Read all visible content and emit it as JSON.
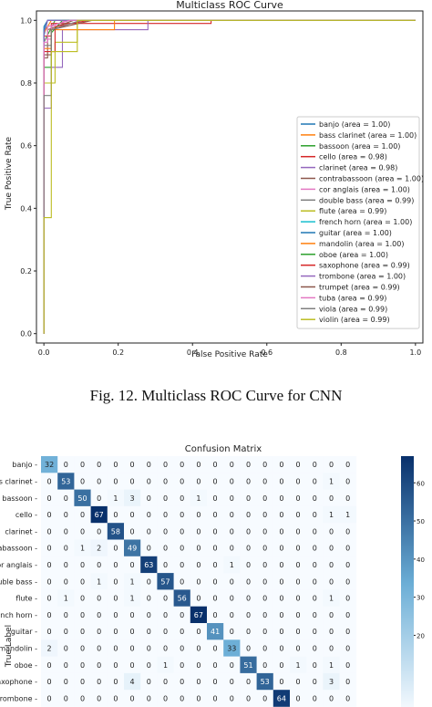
{
  "caption": "Fig. 12.  Multiclass ROC Curve for CNN",
  "chart_data": [
    {
      "type": "line",
      "title": "Multiclass ROC Curve",
      "xlabel": "False Positive Rate",
      "ylabel": "True Positive Rate",
      "xlim": [
        -0.02,
        1.02
      ],
      "ylim": [
        -0.03,
        1.03
      ],
      "xticks": [
        0.0,
        0.2,
        0.4,
        0.6,
        0.8,
        1.0
      ],
      "yticks": [
        0.0,
        0.2,
        0.4,
        0.6,
        0.8,
        1.0
      ],
      "grid": false,
      "legend_position": "lower-right",
      "series": [
        {
          "name": "banjo (area = 1.00)",
          "color": "#1f77b4",
          "x": [
            0,
            0,
            0.01,
            1
          ],
          "y": [
            0,
            0.95,
            1,
            1
          ]
        },
        {
          "name": "bass clarinet (area = 1.00)",
          "color": "#ff7f0e",
          "x": [
            0,
            0,
            0.02,
            1
          ],
          "y": [
            0,
            0.96,
            1,
            1
          ]
        },
        {
          "name": "bassoon (area = 1.00)",
          "color": "#2ca02c",
          "x": [
            0,
            0,
            0.03,
            1
          ],
          "y": [
            0,
            0.93,
            1,
            1
          ]
        },
        {
          "name": "cello (area = 0.98)",
          "color": "#d62728",
          "x": [
            0,
            0,
            0.02,
            0.02,
            0.45,
            0.45,
            1
          ],
          "y": [
            0,
            0.95,
            0.95,
            0.99,
            0.99,
            1,
            1
          ]
        },
        {
          "name": "clarinet (area = 0.98)",
          "color": "#9467bd",
          "x": [
            0,
            0,
            0.02,
            0.02,
            0.05,
            0.05,
            0.28,
            0.28,
            1
          ],
          "y": [
            0,
            0.72,
            0.72,
            0.85,
            0.85,
            0.97,
            0.97,
            1,
            1
          ]
        },
        {
          "name": "contrabassoon (area = 1.00)",
          "color": "#8c564b",
          "x": [
            0,
            0,
            0.01,
            0.01,
            0.08,
            1
          ],
          "y": [
            0,
            0.88,
            0.88,
            0.97,
            1,
            1
          ]
        },
        {
          "name": "cor anglais (area = 1.00)",
          "color": "#e377c2",
          "x": [
            0,
            0,
            0.02,
            0.02,
            0.06,
            1
          ],
          "y": [
            0,
            0.94,
            0.94,
            0.98,
            1,
            1
          ]
        },
        {
          "name": "double bass (area = 0.99)",
          "color": "#7f7f7f",
          "x": [
            0,
            0,
            0.02,
            0.02,
            0.1,
            1
          ],
          "y": [
            0,
            0.92,
            0.92,
            0.97,
            1,
            1
          ]
        },
        {
          "name": "flute (area = 0.99)",
          "color": "#bcbd22",
          "x": [
            0,
            0,
            0.03,
            0.03,
            0.09,
            0.09,
            1
          ],
          "y": [
            0,
            0.8,
            0.8,
            0.93,
            0.93,
            1,
            1
          ]
        },
        {
          "name": "french horn (area = 1.00)",
          "color": "#17becf",
          "x": [
            0,
            0,
            0.01,
            1
          ],
          "y": [
            0,
            0.97,
            1,
            1
          ]
        },
        {
          "name": "guitar (area = 1.00)",
          "color": "#1f77b4",
          "x": [
            0,
            0,
            0.01,
            1
          ],
          "y": [
            0,
            0.98,
            1,
            1
          ]
        },
        {
          "name": "mandolin (area = 1.00)",
          "color": "#ff7f0e",
          "x": [
            0,
            0,
            0.02,
            0.02,
            0.19,
            0.19,
            1
          ],
          "y": [
            0,
            0.91,
            0.91,
            0.97,
            0.97,
            1,
            1
          ]
        },
        {
          "name": "oboe (area = 1.00)",
          "color": "#2ca02c",
          "x": [
            0,
            0,
            0.02,
            0.02,
            0.05,
            1
          ],
          "y": [
            0,
            0.85,
            0.85,
            0.96,
            1,
            1
          ]
        },
        {
          "name": "saxophone (area = 0.99)",
          "color": "#d62728",
          "x": [
            0,
            0,
            0.03,
            0.03,
            0.12,
            1
          ],
          "y": [
            0,
            0.9,
            0.9,
            0.98,
            1,
            1
          ]
        },
        {
          "name": "trombone (area = 1.00)",
          "color": "#9467bd",
          "x": [
            0,
            0,
            0.01,
            1
          ],
          "y": [
            0,
            0.96,
            1,
            1
          ]
        },
        {
          "name": "trumpet (area = 0.99)",
          "color": "#8c564b",
          "x": [
            0,
            0,
            0.02,
            0.02,
            0.13,
            1
          ],
          "y": [
            0,
            0.89,
            0.89,
            0.97,
            1,
            1
          ]
        },
        {
          "name": "tuba (area = 0.99)",
          "color": "#e377c2",
          "x": [
            0,
            0,
            0.01,
            0.01,
            0.07,
            1
          ],
          "y": [
            0,
            0.93,
            0.93,
            0.98,
            1,
            1
          ]
        },
        {
          "name": "viola (area = 0.99)",
          "color": "#7f7f7f",
          "x": [
            0,
            0,
            0.02,
            0.02,
            0.1,
            1
          ],
          "y": [
            0,
            0.76,
            0.76,
            0.97,
            1,
            1
          ]
        },
        {
          "name": "violin (area = 0.99)",
          "color": "#bcbd22",
          "x": [
            0,
            0,
            0.02,
            0.02,
            0.09,
            0.09,
            1
          ],
          "y": [
            0,
            0.37,
            0.37,
            0.9,
            0.9,
            1,
            1
          ]
        }
      ]
    },
    {
      "type": "heatmap",
      "title": "Confusion Matrix",
      "ylabel": "True Label",
      "colormap": "Blues",
      "colorbar_ticks": [
        20,
        30,
        40,
        50,
        60
      ],
      "row_labels": [
        "banjo",
        "bass clarinet",
        "bassoon",
        "cello",
        "clarinet",
        "contrabassoon",
        "cor anglais",
        "double bass",
        "flute",
        "french horn",
        "guitar",
        "mandolin",
        "oboe",
        "saxophone",
        "trombone"
      ],
      "matrix": [
        [
          32,
          0,
          0,
          0,
          0,
          0,
          0,
          0,
          0,
          0,
          0,
          0,
          0,
          0,
          0,
          0,
          0,
          0,
          0
        ],
        [
          0,
          53,
          0,
          0,
          0,
          0,
          0,
          0,
          0,
          0,
          0,
          0,
          0,
          0,
          0,
          0,
          0,
          1,
          0
        ],
        [
          0,
          0,
          50,
          0,
          1,
          3,
          0,
          0,
          0,
          1,
          0,
          0,
          0,
          0,
          0,
          0,
          0,
          0,
          0
        ],
        [
          0,
          0,
          0,
          67,
          0,
          0,
          0,
          0,
          0,
          0,
          0,
          0,
          0,
          0,
          0,
          0,
          0,
          1,
          1
        ],
        [
          0,
          0,
          0,
          0,
          58,
          0,
          0,
          0,
          0,
          0,
          0,
          0,
          0,
          0,
          0,
          0,
          0,
          0,
          0
        ],
        [
          0,
          0,
          1,
          2,
          0,
          49,
          0,
          0,
          0,
          0,
          0,
          0,
          0,
          0,
          0,
          0,
          0,
          0,
          0
        ],
        [
          0,
          0,
          0,
          0,
          0,
          0,
          63,
          0,
          0,
          0,
          0,
          1,
          0,
          0,
          0,
          0,
          0,
          0,
          0
        ],
        [
          0,
          0,
          0,
          1,
          0,
          1,
          0,
          57,
          0,
          0,
          0,
          0,
          0,
          0,
          0,
          0,
          0,
          0,
          0
        ],
        [
          0,
          1,
          0,
          0,
          0,
          1,
          0,
          0,
          56,
          0,
          0,
          0,
          0,
          0,
          0,
          0,
          0,
          1,
          0
        ],
        [
          0,
          0,
          0,
          0,
          0,
          0,
          0,
          0,
          0,
          67,
          0,
          0,
          0,
          0,
          0,
          0,
          0,
          0,
          0
        ],
        [
          0,
          0,
          0,
          0,
          0,
          0,
          0,
          0,
          0,
          0,
          41,
          0,
          0,
          0,
          0,
          0,
          0,
          0,
          0
        ],
        [
          2,
          0,
          0,
          0,
          0,
          0,
          0,
          0,
          0,
          0,
          0,
          33,
          0,
          0,
          0,
          0,
          0,
          0,
          0
        ],
        [
          0,
          0,
          0,
          0,
          0,
          0,
          0,
          1,
          0,
          0,
          0,
          0,
          51,
          0,
          0,
          1,
          0,
          1,
          0
        ],
        [
          0,
          0,
          0,
          0,
          0,
          4,
          0,
          0,
          0,
          0,
          0,
          0,
          0,
          53,
          0,
          0,
          0,
          3,
          0
        ],
        [
          0,
          0,
          0,
          0,
          0,
          0,
          0,
          0,
          0,
          0,
          0,
          0,
          0,
          0,
          64,
          0,
          0,
          0,
          0
        ]
      ]
    }
  ]
}
